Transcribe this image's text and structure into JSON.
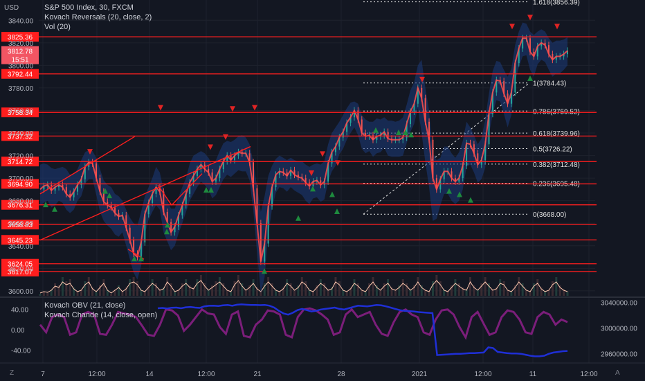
{
  "header": {
    "currency": "USD",
    "title": "S&P 500 Index, 30, FXCM",
    "indicator_1": "Kovach Reversals (20, close, 2)",
    "indicator_2": "Vol (20)",
    "sub_indicator_1": "Kovach OBV (21, close)",
    "sub_indicator_2": "Kovach Chande (14, close, open)"
  },
  "colors": {
    "background": "#131722",
    "level_line": "#ff1e1e",
    "price_line": "#ff4d4d",
    "band_fill": "#1c3a7a",
    "candle_up": "#26a69a",
    "candle_down": "#ef5350",
    "obv_line": "#1f2fd6",
    "chande_line": "#7b1e7a",
    "buy_marker": "#1e8a3e",
    "sell_marker": "#e02424",
    "volume_line": "#ffc9b0"
  },
  "icons": {
    "bottom_left": "z-timezone-icon",
    "bottom_right": "auto-scale-icon"
  },
  "chart_data": [
    {
      "type": "line",
      "title": "S&P 500 Index, 30, FXCM",
      "ylim": [
        3595,
        3858
      ],
      "y_ticks": [
        3600.0,
        3620.0,
        3640.0,
        3660.0,
        3680.0,
        3700.0,
        3720.0,
        3740.0,
        3760.0,
        3780.0,
        3800.0,
        3820.0,
        3840.0
      ],
      "y_tick_labels": [
        "3600.00",
        "3620.00",
        "3640.00",
        "3660.00",
        "3680.00",
        "3700.00",
        "3720.00",
        "3740.00",
        "3760.00",
        "3780.00",
        "3800.00",
        "3820.00",
        "3840.00"
      ],
      "x_labels": [
        "7",
        "12:00",
        "14",
        "12:00",
        "21",
        "28",
        "2021",
        "12:00",
        "11",
        "12:00"
      ],
      "current_price": {
        "label": "3812.78",
        "value": 3812.78,
        "countdown": "15:51"
      },
      "levels": [
        {
          "label": "3825.36",
          "value": 3825.36
        },
        {
          "label": "3792.44",
          "value": 3792.44
        },
        {
          "label": "3758.34",
          "value": 3758.34
        },
        {
          "label": "3737.32",
          "value": 3737.32
        },
        {
          "label": "3714.72",
          "value": 3714.72
        },
        {
          "label": "3694.90",
          "value": 3694.9
        },
        {
          "label": "3676.31",
          "value": 3676.31
        },
        {
          "label": "3658.83",
          "value": 3658.83
        },
        {
          "label": "3645.23",
          "value": 3645.23
        },
        {
          "label": "3624.05",
          "value": 3624.05
        },
        {
          "label": "3617.07",
          "value": 3617.07
        }
      ],
      "fibonacci": [
        {
          "label": "1.618(3856.39)",
          "value": 3856.39
        },
        {
          "label": "1(3784.43)",
          "value": 3784.43
        },
        {
          "label": "0.786(3759.52)",
          "value": 3759.52
        },
        {
          "label": "0.618(3739.96)",
          "value": 3739.96
        },
        {
          "label": "0.5(3726.22)",
          "value": 3726.22
        },
        {
          "label": "0.382(3712.48)",
          "value": 3712.48
        },
        {
          "label": "0.236(3695.48)",
          "value": 3695.48
        },
        {
          "label": "0(3668.00)",
          "value": 3668.0
        }
      ],
      "price": [
        3690,
        3693,
        3694,
        3689,
        3692,
        3694,
        3692,
        3686,
        3683,
        3688,
        3694,
        3699,
        3710,
        3714,
        3713,
        3700,
        3688,
        3679,
        3676,
        3674,
        3669,
        3666,
        3667,
        3656,
        3645,
        3633,
        3630,
        3643,
        3668,
        3678,
        3686,
        3692,
        3688,
        3670,
        3661,
        3652,
        3657,
        3667,
        3676,
        3686,
        3696,
        3702,
        3708,
        3712,
        3708,
        3705,
        3697,
        3700,
        3708,
        3715,
        3720,
        3716,
        3720,
        3723,
        3722,
        3722,
        3714,
        3691,
        3660,
        3626,
        3642,
        3675,
        3692,
        3703,
        3706,
        3705,
        3702,
        3707,
        3703,
        3701,
        3700,
        3696,
        3693,
        3697,
        3698,
        3694,
        3697,
        3713,
        3723,
        3728,
        3736,
        3741,
        3749,
        3754,
        3760,
        3752,
        3740,
        3737,
        3738,
        3734,
        3737,
        3738,
        3741,
        3735,
        3734,
        3734,
        3734,
        3736,
        3748,
        3759,
        3766,
        3780,
        3771,
        3750,
        3734,
        3700,
        3690,
        3699,
        3706,
        3706,
        3700,
        3697,
        3700,
        3711,
        3731,
        3730,
        3722,
        3712,
        3716,
        3730,
        3757,
        3776,
        3787,
        3786,
        3775,
        3766,
        3776,
        3802,
        3815,
        3824,
        3824,
        3812,
        3808,
        3817,
        3820,
        3818,
        3810,
        3805,
        3808,
        3808,
        3810,
        3813
      ],
      "band_upper": [
        3712,
        3713,
        3712,
        3709,
        3708,
        3709,
        3710,
        3708,
        3703,
        3704,
        3708,
        3716,
        3723,
        3725,
        3724,
        3718,
        3708,
        3698,
        3694,
        3692,
        3686,
        3684,
        3680,
        3672,
        3665,
        3660,
        3658,
        3670,
        3684,
        3692,
        3700,
        3710,
        3705,
        3690,
        3680,
        3673,
        3673,
        3683,
        3692,
        3700,
        3713,
        3720,
        3722,
        3724,
        3722,
        3718,
        3712,
        3716,
        3724,
        3731,
        3733,
        3732,
        3734,
        3737,
        3738,
        3736,
        3730,
        3714,
        3693,
        3670,
        3684,
        3702,
        3711,
        3717,
        3720,
        3718,
        3716,
        3718,
        3716,
        3715,
        3715,
        3712,
        3710,
        3712,
        3713,
        3712,
        3715,
        3730,
        3740,
        3745,
        3750,
        3756,
        3762,
        3767,
        3768,
        3766,
        3756,
        3752,
        3750,
        3750,
        3753,
        3752,
        3754,
        3751,
        3751,
        3750,
        3751,
        3754,
        3765,
        3778,
        3785,
        3800,
        3805,
        3780,
        3760,
        3722,
        3716,
        3718,
        3728,
        3728,
        3722,
        3718,
        3723,
        3733,
        3750,
        3745,
        3738,
        3730,
        3735,
        3752,
        3775,
        3795,
        3804,
        3803,
        3796,
        3790,
        3797,
        3818,
        3830,
        3838,
        3837,
        3830,
        3827,
        3830,
        3832,
        3830,
        3824,
        3820,
        3822,
        3822,
        3823,
        3825
      ],
      "band_lower": [
        3676,
        3678,
        3680,
        3674,
        3676,
        3680,
        3678,
        3672,
        3669,
        3672,
        3680,
        3684,
        3695,
        3699,
        3699,
        3685,
        3670,
        3662,
        3658,
        3655,
        3650,
        3648,
        3652,
        3640,
        3628,
        3616,
        3610,
        3622,
        3650,
        3663,
        3670,
        3676,
        3672,
        3652,
        3644,
        3636,
        3640,
        3651,
        3660,
        3670,
        3680,
        3686,
        3692,
        3697,
        3694,
        3690,
        3682,
        3685,
        3692,
        3699,
        3703,
        3701,
        3704,
        3707,
        3706,
        3706,
        3698,
        3672,
        3634,
        3598,
        3612,
        3650,
        3673,
        3687,
        3692,
        3691,
        3688,
        3692,
        3689,
        3687,
        3685,
        3680,
        3677,
        3682,
        3683,
        3679,
        3681,
        3697,
        3706,
        3711,
        3721,
        3726,
        3734,
        3740,
        3745,
        3738,
        3726,
        3722,
        3724,
        3719,
        3722,
        3723,
        3727,
        3720,
        3719,
        3719,
        3719,
        3720,
        3731,
        3741,
        3748,
        3762,
        3740,
        3714,
        3692,
        3662,
        3664,
        3676,
        3686,
        3686,
        3680,
        3677,
        3680,
        3690,
        3710,
        3712,
        3705,
        3696,
        3699,
        3709,
        3738,
        3757,
        3769,
        3768,
        3757,
        3745,
        3756,
        3786,
        3798,
        3808,
        3809,
        3796,
        3790,
        3801,
        3805,
        3803,
        3796,
        3790,
        3793,
        3793,
        3796,
        3800
      ],
      "volume_osc": [
        0.1,
        0.2,
        0.15,
        0.3,
        0.6,
        0.5,
        0.9,
        0.7,
        0.8,
        0.4,
        0.2,
        0.3,
        0.7,
        0.9,
        0.4,
        0.2,
        0.5,
        0.8,
        0.3,
        0.1,
        0.3,
        0.5,
        0.2,
        0.4,
        0.8,
        0.9,
        0.7,
        0.3,
        0.2,
        0.5,
        0.8,
        0.6,
        0.3,
        0.4,
        0.9,
        0.6,
        0.2,
        0.3,
        0.6,
        0.8,
        0.5,
        0.4,
        0.8,
        1.0,
        0.6,
        0.3,
        0.5,
        0.7,
        0.9,
        0.6,
        0.3,
        0.2,
        0.7,
        1.0,
        0.6,
        0.3,
        0.5,
        0.8,
        0.4,
        0.2,
        0.6,
        0.9,
        0.6,
        0.3,
        0.2,
        0.4,
        0.8,
        0.6,
        0.3,
        0.5,
        0.9,
        0.7,
        0.3,
        0.2,
        0.5,
        0.8,
        0.6,
        0.3,
        0.4,
        0.9,
        0.7,
        0.3,
        0.2,
        0.4,
        0.8,
        0.6,
        0.3,
        0.2,
        0.6,
        0.9,
        0.5,
        0.3,
        0.6,
        0.8,
        0.4,
        0.3,
        0.5,
        0.8,
        0.6,
        0.3,
        0.5,
        0.9,
        0.5,
        0.3,
        0.2,
        0.7,
        1.0,
        0.7,
        0.3,
        0.2,
        0.5,
        0.8,
        0.6,
        0.4,
        0.3,
        0.9,
        0.5,
        0.3,
        0.6,
        0.9,
        0.6,
        0.3,
        0.4,
        0.8,
        0.7,
        0.3,
        0.2,
        0.5,
        0.9,
        0.6,
        0.3,
        0.2,
        0.6,
        0.8,
        0.4,
        0.2,
        0.3,
        0.7,
        0.9,
        0.5,
        0.3,
        0.2
      ],
      "buy_signals": [
        3676,
        3672,
        3628,
        3628,
        3652,
        3658,
        3688,
        3684,
        3689,
        3689,
        3617,
        3664,
        3670,
        3690,
        3685,
        3742,
        3740,
        3740,
        3738,
        3688,
        3680,
        3685,
        3788
      ],
      "sell_signals": [
        3724,
        3763,
        3728,
        3737,
        3762,
        3763,
        3705,
        3722,
        3714,
        3788,
        3835,
        3843,
        3835
      ]
    },
    {
      "type": "line",
      "series": [
        {
          "name": "Kovach OBV (21, close)",
          "values": [
            3031000,
            3031500,
            3030500,
            3031800,
            3032000,
            3031000,
            3032500,
            3033000,
            3032000,
            3031500,
            3034000,
            3034800,
            3035000,
            3034500,
            3035500,
            3036000,
            3035000,
            3036500,
            3037000,
            3036500,
            3036000,
            3036200,
            3035800,
            3036100,
            3035000,
            3032000,
            3027000,
            3023000,
            3021000,
            3024000,
            3028000,
            3030000,
            3028000,
            3026000,
            3027000,
            3029000,
            3030000,
            3031000,
            3032000,
            3030000,
            3029000,
            3031000,
            3033000,
            3035000,
            3034500,
            3034000,
            3035000,
            3036000,
            3035500,
            3034000,
            3032000,
            3030000,
            3028000,
            3027000,
            3026500,
            3026000,
            3025000,
            3024500,
            3024000,
            3023500,
            2958000,
            2958500,
            2959000,
            2959500,
            2960000,
            2960000,
            2960500,
            2961000,
            2961000,
            2961500,
            2962000,
            2970000,
            2969000,
            2963000,
            2962000,
            2961000,
            2960500,
            2960500,
            2960000,
            2958500,
            2957000,
            2956000,
            2956000,
            2957000,
            2960000,
            2962000,
            2963000,
            2964000,
            2964500
          ]
        },
        {
          "name": "Kovach Chande (14, close, open)",
          "values": [
            10,
            -5,
            25,
            30,
            25,
            -10,
            -5,
            30,
            35,
            30,
            -8,
            -10,
            10,
            35,
            32,
            30,
            25,
            8,
            -10,
            -12,
            10,
            40,
            38,
            28,
            -2,
            10,
            25,
            40,
            32,
            30,
            5,
            -8,
            30,
            36,
            -12,
            -15,
            10,
            20,
            38,
            36,
            30,
            -10,
            -15,
            25,
            40,
            42,
            38,
            30,
            20,
            -10,
            -5,
            30,
            40,
            25,
            30,
            35,
            10,
            -8,
            -12,
            15,
            35,
            40,
            30,
            25,
            -5,
            -10,
            20,
            38,
            40,
            30,
            5,
            -15,
            25,
            35,
            12,
            -10,
            -5,
            25,
            38,
            35,
            20,
            -5,
            -8,
            25,
            35,
            30,
            10,
            20,
            15
          ]
        }
      ],
      "ylim": [
        -60,
        60
      ],
      "y_ticks": [
        40,
        0,
        -40
      ],
      "y_tick_labels": [
        "40.00",
        "0.00",
        "-40.00"
      ],
      "obv_ylim": [
        2950000,
        3045000
      ],
      "obv_ticks": [
        3040000,
        3000000,
        2960000
      ],
      "obv_tick_labels": [
        "3040000.00",
        "3000000.00",
        "2960000.00"
      ]
    }
  ]
}
